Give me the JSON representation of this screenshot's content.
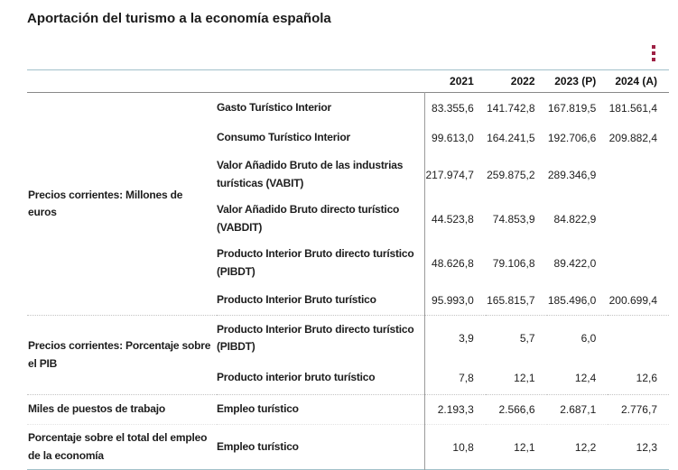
{
  "title": "Aportación del turismo a la economía española",
  "colors": {
    "accent": "#9e2144",
    "table_border": "#a2c1ca",
    "header_rule": "#898989",
    "divider": "#9b9b9b"
  },
  "context_menu": {
    "icon": "kebab-menu-icon"
  },
  "chart_data": {
    "type": "table",
    "title": "Aportación del turismo a la economía española",
    "columns": [
      "2021",
      "2022",
      "2023 (P)",
      "2024 (A)"
    ],
    "groups": [
      {
        "label": "Precios corrientes: Millones de euros",
        "rows": [
          {
            "concept": "Gasto Turístico Interior",
            "values": [
              "83.355,6",
              "141.742,8",
              "167.819,5",
              "181.561,4"
            ]
          },
          {
            "concept": "Consumo Turístico Interior",
            "values": [
              "99.613,0",
              "164.241,5",
              "192.706,6",
              "209.882,4"
            ]
          },
          {
            "concept": "Valor Añadido Bruto de las industrias turísticas (VABIT)",
            "values": [
              "217.974,7",
              "259.875,2",
              "289.346,9",
              ""
            ]
          },
          {
            "concept": "Valor Añadido Bruto directo turístico (VABDIT)",
            "values": [
              "44.523,8",
              "74.853,9",
              "84.822,9",
              ""
            ]
          },
          {
            "concept": "Producto Interior Bruto directo turístico (PIBDT)",
            "values": [
              "48.626,8",
              "79.106,8",
              "89.422,0",
              ""
            ]
          },
          {
            "concept": "Producto Interior Bruto turístico",
            "values": [
              "95.993,0",
              "165.815,7",
              "185.496,0",
              "200.699,4"
            ]
          }
        ]
      },
      {
        "label": "Precios corrientes: Porcentaje sobre el PIB",
        "rows": [
          {
            "concept": "Producto Interior Bruto directo turístico (PIBDT)",
            "values": [
              "3,9",
              "5,7",
              "6,0",
              ""
            ]
          },
          {
            "concept": "Producto interior bruto turístico",
            "values": [
              "7,8",
              "12,1",
              "12,4",
              "12,6"
            ]
          }
        ]
      },
      {
        "label": "Miles de puestos de trabajo",
        "rows": [
          {
            "concept": "Empleo turístico",
            "values": [
              "2.193,3",
              "2.566,6",
              "2.687,1",
              "2.776,7"
            ]
          }
        ]
      },
      {
        "label": "Porcentaje sobre el total del empleo de la economía",
        "rows": [
          {
            "concept": "Empleo turístico",
            "values": [
              "10,8",
              "12,1",
              "12,2",
              "12,3"
            ]
          }
        ]
      }
    ]
  }
}
